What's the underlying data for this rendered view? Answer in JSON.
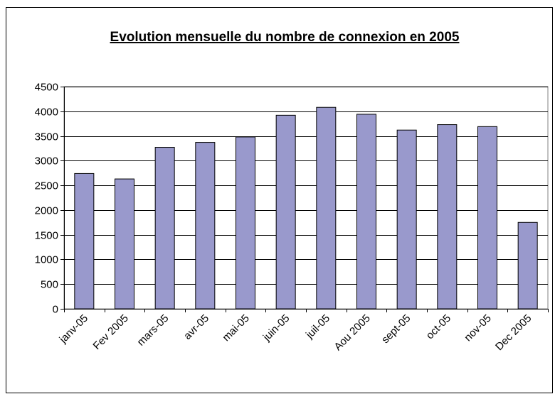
{
  "chart_data": {
    "type": "bar",
    "title": "Evolution mensuelle du nombre de connexion en 2005",
    "categories": [
      "janv-05",
      "Fev 2005",
      "mars-05",
      "avr-05",
      "mai-05",
      "juin-05",
      "juil-05",
      "Aou 2005",
      "sept-05",
      "oct-05",
      "nov-05",
      "Dec 2005"
    ],
    "values": [
      2740,
      2630,
      3270,
      3370,
      3480,
      3920,
      4080,
      3940,
      3620,
      3730,
      3690,
      1750
    ],
    "color": "#9999cc",
    "ylim": [
      0,
      4500
    ],
    "yticks": [
      0,
      500,
      1000,
      1500,
      2000,
      2500,
      3000,
      3500,
      4000,
      4500
    ],
    "grid": true
  }
}
